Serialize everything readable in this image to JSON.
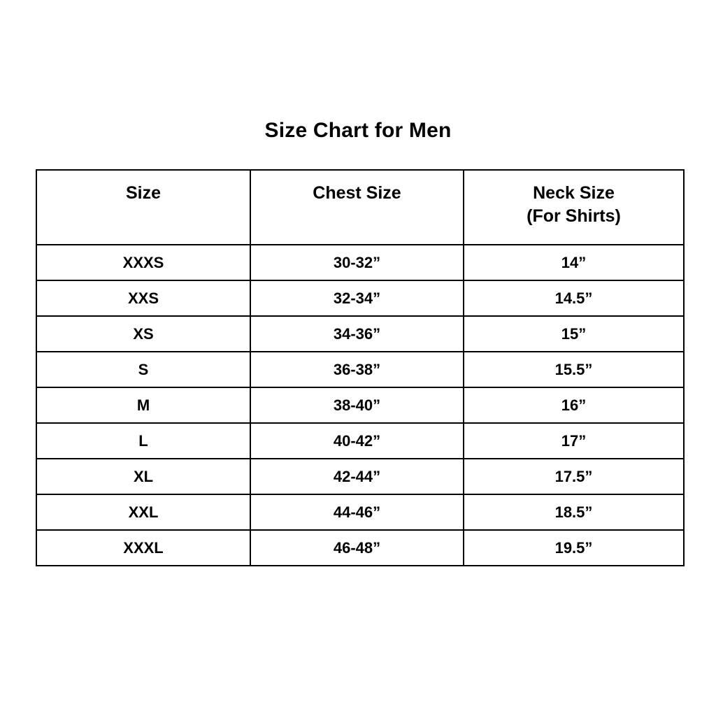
{
  "page_title": "Size Chart for Men",
  "chart_data": {
    "type": "table",
    "title": "Size Chart for Men",
    "headers": {
      "size": "Size",
      "chest": "Chest Size",
      "neck_line1": "Neck Size",
      "neck_line2": "(For Shirts)"
    },
    "columns": [
      "Size",
      "Chest Size",
      "Neck Size (For Shirts)"
    ],
    "rows": [
      [
        "XXXS",
        "30-32”",
        "14”"
      ],
      [
        "XXS",
        "32-34”",
        "14.5”"
      ],
      [
        "XS",
        "34-36”",
        "15”"
      ],
      [
        "S",
        "36-38”",
        "15.5”"
      ],
      [
        "M",
        "38-40”",
        "16”"
      ],
      [
        "L",
        "40-42”",
        "17”"
      ],
      [
        "XL",
        "42-44”",
        "17.5”"
      ],
      [
        "XXL",
        "44-46”",
        "18.5”"
      ],
      [
        "XXXL",
        "46-48”",
        "19.5”"
      ]
    ],
    "text_color": "#000000",
    "border_color": "#000000",
    "background_color": "#ffffff"
  }
}
